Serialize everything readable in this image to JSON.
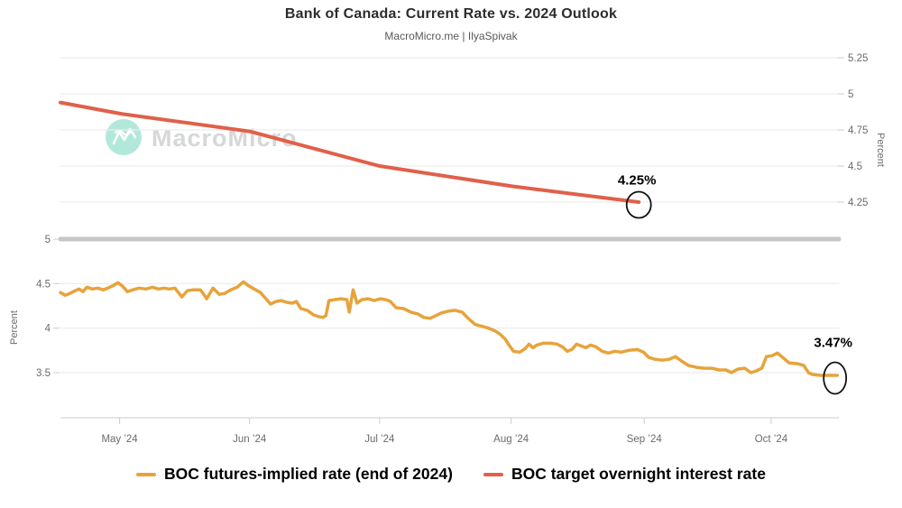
{
  "header": {
    "title": "Bank of Canada: Current Rate vs. 2024 Outlook",
    "subtitle": "MacroMicro.me | IlyaSpivak"
  },
  "watermark": {
    "text": "MacroMicro"
  },
  "colors": {
    "futures_line": "#e7a33a",
    "target_line": "#e0604a",
    "grid": "#ececec",
    "grid_emphasis": "#c6c6c6",
    "axis_line": "#d6d6d6",
    "tick_mark": "#cccccc",
    "axis_text": "#6b6b6b",
    "annotation_text": "#000000",
    "annotation_circle": "#111111",
    "watermark_circle": "#ade7d9",
    "watermark_text": "#d3d6d5"
  },
  "legend": {
    "items": [
      {
        "label": "BOC futures-implied rate (end of 2024)",
        "color": "#e7a33a"
      },
      {
        "label": "BOC target overnight interest rate",
        "color": "#e0604a"
      }
    ]
  },
  "chart_data": {
    "type": "line",
    "x_ticks": [
      {
        "label": "May ’24",
        "t": 0.076
      },
      {
        "label": "Jun ’24",
        "t": 0.243
      },
      {
        "label": "Jul ’24",
        "t": 0.41
      },
      {
        "label": "Aug ’24",
        "t": 0.579
      },
      {
        "label": "Sep ’24",
        "t": 0.75
      },
      {
        "label": "Oct ’24",
        "t": 0.913
      }
    ],
    "panels": [
      {
        "name": "target-rate-panel",
        "axis_side": "right",
        "ylabel": "Percent",
        "yticks": [
          {
            "label": "5.25",
            "value": 5.25
          },
          {
            "label": "5",
            "value": 5.0
          },
          {
            "label": "4.75",
            "value": 4.75
          },
          {
            "label": "4.5",
            "value": 4.5
          },
          {
            "label": "4.25",
            "value": 4.25
          }
        ],
        "series": {
          "name": "BOC target overnight interest rate",
          "color": "#e0604a",
          "points": [
            [
              0.0,
              4.94
            ],
            [
              0.08,
              4.86
            ],
            [
              0.243,
              4.74
            ],
            [
              0.41,
              4.5
            ],
            [
              0.58,
              4.36
            ],
            [
              0.743,
              4.25
            ]
          ]
        },
        "annotation": {
          "label": "4.25%",
          "t": 0.743,
          "value": 4.25
        }
      },
      {
        "name": "futures-rate-panel",
        "axis_side": "left",
        "ylabel": "Percent",
        "yticks": [
          {
            "label": "5",
            "value": 5.0,
            "emphasis": true
          },
          {
            "label": "4.5",
            "value": 4.5
          },
          {
            "label": "4",
            "value": 4.0
          },
          {
            "label": "3.5",
            "value": 3.5
          }
        ],
        "series": {
          "name": "BOC futures-implied rate (end of 2024)",
          "color": "#e7a33a",
          "points": [
            [
              0.0,
              4.4
            ],
            [
              0.006,
              4.37
            ],
            [
              0.012,
              4.39
            ],
            [
              0.019,
              4.42
            ],
            [
              0.024,
              4.44
            ],
            [
              0.029,
              4.41
            ],
            [
              0.034,
              4.46
            ],
            [
              0.041,
              4.44
            ],
            [
              0.048,
              4.45
            ],
            [
              0.055,
              4.43
            ],
            [
              0.061,
              4.45
            ],
            [
              0.068,
              4.48
            ],
            [
              0.074,
              4.51
            ],
            [
              0.08,
              4.47
            ],
            [
              0.086,
              4.41
            ],
            [
              0.093,
              4.43
            ],
            [
              0.101,
              4.45
            ],
            [
              0.11,
              4.44
            ],
            [
              0.118,
              4.46
            ],
            [
              0.126,
              4.44
            ],
            [
              0.133,
              4.45
            ],
            [
              0.14,
              4.44
            ],
            [
              0.147,
              4.45
            ],
            [
              0.156,
              4.35
            ],
            [
              0.163,
              4.42
            ],
            [
              0.171,
              4.43
            ],
            [
              0.18,
              4.43
            ],
            [
              0.188,
              4.33
            ],
            [
              0.196,
              4.45
            ],
            [
              0.204,
              4.38
            ],
            [
              0.211,
              4.39
            ],
            [
              0.219,
              4.43
            ],
            [
              0.227,
              4.46
            ],
            [
              0.235,
              4.52
            ],
            [
              0.241,
              4.48
            ],
            [
              0.249,
              4.44
            ],
            [
              0.257,
              4.4
            ],
            [
              0.264,
              4.33
            ],
            [
              0.27,
              4.27
            ],
            [
              0.277,
              4.3
            ],
            [
              0.284,
              4.31
            ],
            [
              0.291,
              4.29
            ],
            [
              0.298,
              4.28
            ],
            [
              0.303,
              4.3
            ],
            [
              0.309,
              4.22
            ],
            [
              0.317,
              4.2
            ],
            [
              0.325,
              4.15
            ],
            [
              0.331,
              4.13
            ],
            [
              0.337,
              4.12
            ],
            [
              0.341,
              4.14
            ],
            [
              0.345,
              4.31
            ],
            [
              0.352,
              4.32
            ],
            [
              0.361,
              4.33
            ],
            [
              0.368,
              4.32
            ],
            [
              0.371,
              4.18
            ],
            [
              0.376,
              4.43
            ],
            [
              0.381,
              4.28
            ],
            [
              0.387,
              4.32
            ],
            [
              0.395,
              4.33
            ],
            [
              0.403,
              4.31
            ],
            [
              0.411,
              4.33
            ],
            [
              0.418,
              4.32
            ],
            [
              0.424,
              4.3
            ],
            [
              0.431,
              4.23
            ],
            [
              0.441,
              4.22
            ],
            [
              0.45,
              4.18
            ],
            [
              0.459,
              4.16
            ],
            [
              0.467,
              4.12
            ],
            [
              0.475,
              4.11
            ],
            [
              0.482,
              4.14
            ],
            [
              0.489,
              4.17
            ],
            [
              0.498,
              4.19
            ],
            [
              0.507,
              4.2
            ],
            [
              0.516,
              4.18
            ],
            [
              0.525,
              4.1
            ],
            [
              0.533,
              4.04
            ],
            [
              0.542,
              4.02
            ],
            [
              0.55,
              4.0
            ],
            [
              0.558,
              3.97
            ],
            [
              0.565,
              3.93
            ],
            [
              0.571,
              3.88
            ],
            [
              0.577,
              3.8
            ],
            [
              0.582,
              3.74
            ],
            [
              0.59,
              3.73
            ],
            [
              0.597,
              3.77
            ],
            [
              0.602,
              3.82
            ],
            [
              0.607,
              3.78
            ],
            [
              0.612,
              3.81
            ],
            [
              0.62,
              3.83
            ],
            [
              0.63,
              3.83
            ],
            [
              0.638,
              3.82
            ],
            [
              0.645,
              3.79
            ],
            [
              0.651,
              3.74
            ],
            [
              0.657,
              3.76
            ],
            [
              0.663,
              3.82
            ],
            [
              0.669,
              3.8
            ],
            [
              0.675,
              3.78
            ],
            [
              0.681,
              3.81
            ],
            [
              0.688,
              3.79
            ],
            [
              0.696,
              3.74
            ],
            [
              0.704,
              3.72
            ],
            [
              0.712,
              3.74
            ],
            [
              0.72,
              3.73
            ],
            [
              0.73,
              3.75
            ],
            [
              0.741,
              3.76
            ],
            [
              0.749,
              3.73
            ],
            [
              0.756,
              3.67
            ],
            [
              0.764,
              3.65
            ],
            [
              0.773,
              3.64
            ],
            [
              0.782,
              3.65
            ],
            [
              0.79,
              3.68
            ],
            [
              0.798,
              3.63
            ],
            [
              0.807,
              3.58
            ],
            [
              0.817,
              3.56
            ],
            [
              0.827,
              3.55
            ],
            [
              0.837,
              3.55
            ],
            [
              0.846,
              3.53
            ],
            [
              0.855,
              3.53
            ],
            [
              0.862,
              3.5
            ],
            [
              0.87,
              3.54
            ],
            [
              0.879,
              3.55
            ],
            [
              0.887,
              3.5
            ],
            [
              0.894,
              3.52
            ],
            [
              0.901,
              3.55
            ],
            [
              0.907,
              3.68
            ],
            [
              0.914,
              3.69
            ],
            [
              0.921,
              3.72
            ],
            [
              0.928,
              3.67
            ],
            [
              0.936,
              3.61
            ],
            [
              0.947,
              3.6
            ],
            [
              0.955,
              3.58
            ],
            [
              0.961,
              3.5
            ],
            [
              0.966,
              3.48
            ],
            [
              0.976,
              3.47
            ],
            [
              0.998,
              3.47
            ]
          ]
        },
        "annotation": {
          "label": "3.47%",
          "t": 0.995,
          "value": 3.47
        }
      }
    ]
  }
}
